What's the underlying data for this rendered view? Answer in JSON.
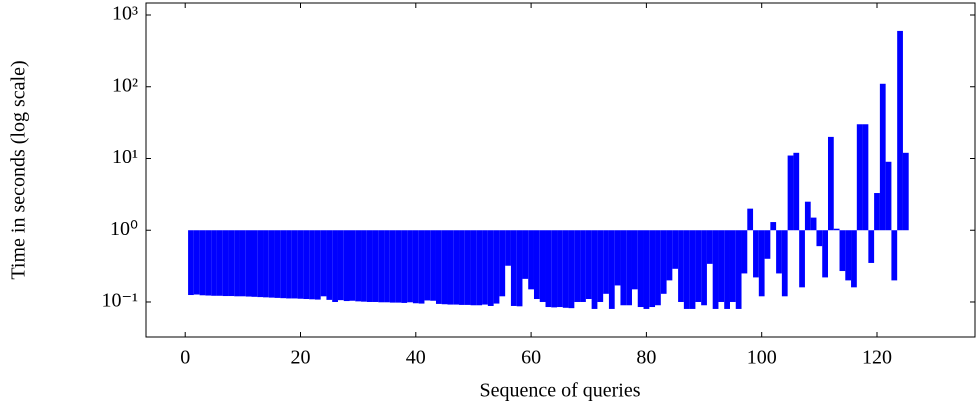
{
  "chart_data": {
    "type": "bar",
    "xlabel": "Sequence of queries",
    "ylabel": "Time in seconds (log scale)",
    "color": "#0000ff",
    "log_y": true,
    "x": [
      1,
      2,
      3,
      4,
      5,
      6,
      7,
      8,
      9,
      10,
      11,
      12,
      13,
      14,
      15,
      16,
      17,
      18,
      19,
      20,
      21,
      22,
      23,
      24,
      25,
      26,
      27,
      28,
      29,
      30,
      31,
      32,
      33,
      34,
      35,
      36,
      37,
      38,
      39,
      40,
      41,
      42,
      43,
      44,
      45,
      46,
      47,
      48,
      49,
      50,
      51,
      52,
      53,
      54,
      55,
      56,
      57,
      58,
      59,
      60,
      61,
      62,
      63,
      64,
      65,
      66,
      67,
      68,
      69,
      70,
      71,
      72,
      73,
      74,
      75,
      76,
      77,
      78,
      79,
      80,
      81,
      82,
      83,
      84,
      85,
      86,
      87,
      88,
      89,
      90,
      91,
      92,
      93,
      94,
      95,
      96,
      97,
      98,
      99,
      100,
      101,
      102,
      103,
      104,
      105,
      106,
      107,
      108,
      109,
      110,
      111,
      112,
      113,
      114,
      115,
      116,
      117,
      118,
      119,
      120,
      121,
      122,
      123,
      124,
      125
    ],
    "values": [
      0.125,
      0.127,
      0.124,
      0.123,
      0.122,
      0.122,
      0.121,
      0.121,
      0.12,
      0.12,
      0.119,
      0.118,
      0.117,
      0.116,
      0.115,
      0.114,
      0.113,
      0.112,
      0.112,
      0.111,
      0.11,
      0.109,
      0.108,
      0.12,
      0.107,
      0.1,
      0.106,
      0.103,
      0.104,
      0.102,
      0.101,
      0.1,
      0.1,
      0.099,
      0.099,
      0.098,
      0.098,
      0.097,
      0.099,
      0.096,
      0.095,
      0.105,
      0.104,
      0.094,
      0.093,
      0.092,
      0.092,
      0.091,
      0.091,
      0.09,
      0.09,
      0.092,
      0.088,
      0.095,
      0.12,
      0.32,
      0.088,
      0.087,
      0.21,
      0.15,
      0.11,
      0.1,
      0.085,
      0.084,
      0.085,
      0.083,
      0.082,
      0.1,
      0.1,
      0.11,
      0.08,
      0.1,
      0.13,
      0.08,
      0.17,
      0.09,
      0.09,
      0.15,
      0.085,
      0.08,
      0.085,
      0.09,
      0.13,
      0.2,
      0.29,
      0.1,
      0.08,
      0.08,
      0.1,
      0.09,
      0.34,
      0.08,
      0.1,
      0.08,
      0.1,
      0.08,
      0.25,
      2.0,
      0.22,
      0.12,
      0.4,
      1.3,
      0.25,
      0.12,
      11,
      12,
      0.16,
      2.5,
      1.5,
      0.6,
      0.22,
      20,
      1.05,
      0.27,
      0.2,
      0.16,
      30,
      30,
      0.35,
      3.3,
      110,
      9,
      0.2,
      600,
      12
    ],
    "xlim": [
      -6.8,
      137
    ],
    "xticks": [
      0,
      20,
      40,
      60,
      80,
      100,
      120
    ],
    "ylim": [
      0.0325,
      1470
    ],
    "yticks": [
      {
        "value": 0.1,
        "label": "10⁻¹"
      },
      {
        "value": 1,
        "label": "10⁰"
      },
      {
        "value": 10,
        "label": "10¹"
      },
      {
        "value": 100,
        "label": "10²"
      },
      {
        "value": 1000,
        "label": "10³"
      }
    ]
  }
}
